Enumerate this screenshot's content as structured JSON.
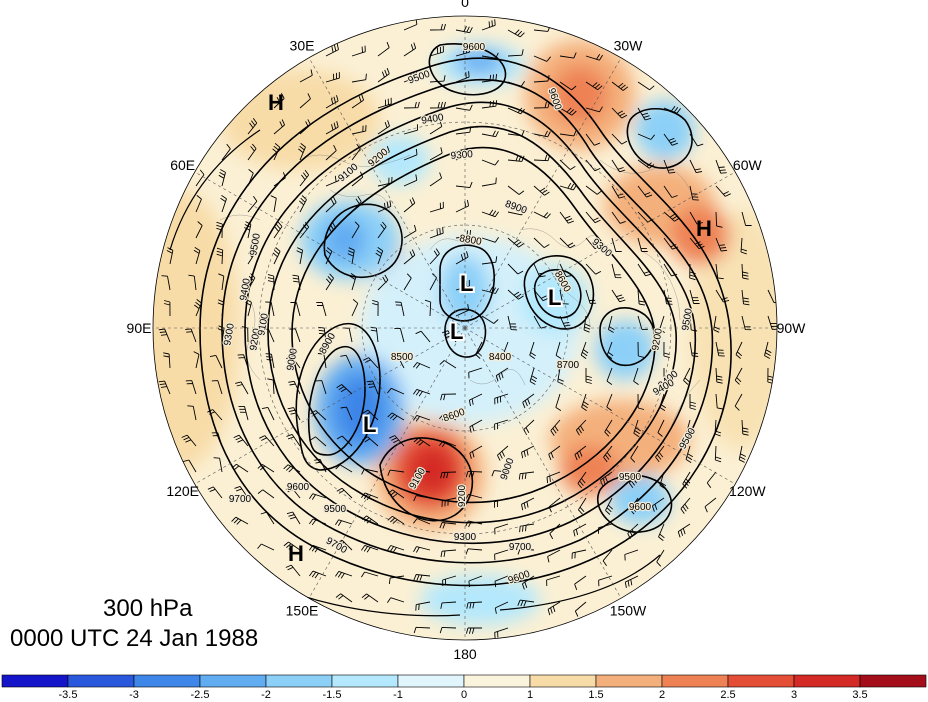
{
  "title": {
    "level": "300 hPa",
    "datetime": "0000 UTC 24 Jan 1988"
  },
  "longitude_labels": [
    "0",
    "30W",
    "60W",
    "90W",
    "120W",
    "150W",
    "180",
    "150E",
    "120E",
    "90E",
    "60E",
    "30E"
  ],
  "contour_labels": [
    "9600",
    "9500",
    "9600",
    "9400",
    "9300",
    "9200",
    "9100",
    "8900",
    "8800",
    "8600",
    "8400",
    "8500",
    "8700",
    "9400",
    "9500",
    "9600",
    "9700",
    "9300",
    "9100",
    "9200",
    "9500",
    "9700",
    "9600",
    "9500",
    "9400",
    "9300",
    "9200",
    "9100",
    "9000",
    "8900",
    "8600",
    "9000",
    "9200",
    "9500",
    "9600",
    "9700",
    "9300",
    "9500",
    "9400"
  ],
  "pressure_centers": {
    "highs": [
      "H",
      "H",
      "H"
    ],
    "lows": [
      "L",
      "L",
      "L",
      "L"
    ]
  },
  "colorbar": {
    "labels": [
      "-3.5",
      "-3",
      "-2.5",
      "-2",
      "-1.5",
      "-1",
      "0",
      "1",
      "1.5",
      "2",
      "2.5",
      "3",
      "3.5"
    ],
    "colors": [
      "#1414c8",
      "#2a58dc",
      "#3e86e8",
      "#62acf2",
      "#8cd0f8",
      "#b4e8fc",
      "#e0f6fc",
      "#fbf4dc",
      "#f8dca8",
      "#f4b07c",
      "#ee8254",
      "#e44e36",
      "#d42a26",
      "#a40e1a"
    ]
  }
}
